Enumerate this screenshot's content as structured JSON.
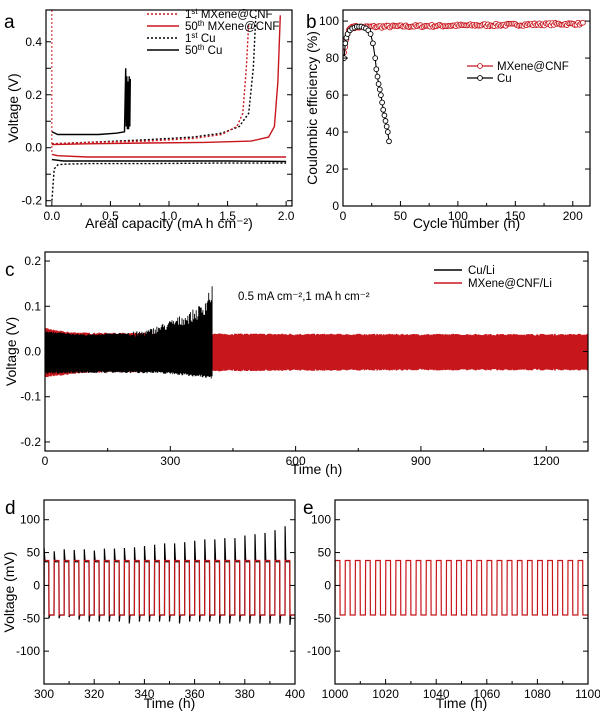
{
  "colors": {
    "red": "#c8161d",
    "black": "#000000"
  },
  "chart_data": [
    {
      "id": "a",
      "panel_label": "a",
      "type": "line",
      "xlabel": "Areal capacity (mA h cm⁻²)",
      "ylabel": "Voltage (V)",
      "xlim": [
        -0.05,
        2.05
      ],
      "ylim": [
        -0.22,
        0.52
      ],
      "xticks": [
        0.0,
        0.5,
        1.0,
        1.5,
        2.0
      ],
      "xtick_labels": [
        "0.0",
        "0.5",
        "1.0",
        "1.5",
        "2.0"
      ],
      "yticks": [
        -0.2,
        -0.1,
        0.0,
        0.1,
        0.2,
        0.3,
        0.4
      ],
      "ytick_labels": [
        "-0.2",
        "",
        "0.0",
        "",
        "0.2",
        "",
        "0.4"
      ],
      "legend_position": "top-right",
      "legend": [
        {
          "label_main": "1",
          "label_sup": "st",
          "label_rest": " MXene@CNF",
          "color": "#c8161d",
          "dash": "dotted"
        },
        {
          "label_main": "50",
          "label_sup": "th",
          "label_rest": " MXene@CNF",
          "color": "#c8161d",
          "dash": "solid"
        },
        {
          "label_main": "1",
          "label_sup": "st",
          "label_rest": " Cu",
          "color": "#000000",
          "dash": "dotted"
        },
        {
          "label_main": "50",
          "label_sup": "th",
          "label_rest": " Cu",
          "color": "#000000",
          "dash": "solid"
        }
      ],
      "series": [
        {
          "name": "50th Cu",
          "color": "#000000",
          "dash": "solid",
          "x": [
            0.0,
            0.05,
            0.2,
            0.4,
            0.55,
            0.62,
            0.63,
            0.635,
            0.64,
            0.645,
            0.65,
            0.655,
            0.66,
            0.665,
            0.67
          ],
          "y": [
            0.06,
            0.05,
            0.05,
            0.05,
            0.055,
            0.06,
            0.3,
            0.08,
            0.27,
            0.07,
            0.25,
            0.07,
            0.27,
            0.08,
            0.26
          ]
        },
        {
          "name": "50th Cu discharge",
          "color": "#000000",
          "dash": "solid",
          "x": [
            0.0,
            0.1,
            0.5,
            1.0,
            1.5,
            2.0
          ],
          "y": [
            -0.045,
            -0.05,
            -0.05,
            -0.05,
            -0.05,
            -0.052
          ]
        },
        {
          "name": "1st Cu",
          "color": "#000000",
          "dash": "dotted",
          "x": [
            0.0,
            0.3,
            0.8,
            1.2,
            1.45,
            1.6,
            1.68,
            1.72,
            1.74
          ],
          "y": [
            0.015,
            0.02,
            0.03,
            0.04,
            0.055,
            0.08,
            0.13,
            0.3,
            0.49
          ]
        },
        {
          "name": "1st Cu discharge",
          "color": "#000000",
          "dash": "dotted",
          "x": [
            0.0,
            0.02,
            0.05,
            0.1,
            0.3,
            0.8,
            1.4,
            2.0
          ],
          "y": [
            -0.2,
            -0.08,
            -0.065,
            -0.062,
            -0.06,
            -0.06,
            -0.058,
            -0.058
          ]
        },
        {
          "name": "1st MXene@CNF",
          "color": "#c8161d",
          "dash": "dotted",
          "x": [
            0.0,
            0.3,
            0.8,
            1.2,
            1.45,
            1.58,
            1.63,
            1.66,
            1.68
          ],
          "y": [
            0.015,
            0.02,
            0.025,
            0.035,
            0.05,
            0.08,
            0.13,
            0.3,
            0.47
          ]
        },
        {
          "name": "50th MXene@CNF",
          "color": "#c8161d",
          "dash": "solid",
          "x": [
            0.0,
            0.3,
            0.8,
            1.3,
            1.7,
            1.85,
            1.9,
            1.93,
            1.95
          ],
          "y": [
            0.012,
            0.015,
            0.018,
            0.02,
            0.025,
            0.04,
            0.08,
            0.25,
            0.5
          ]
        },
        {
          "name": "MXene@CNF discharge",
          "color": "#c8161d",
          "dash": "solid",
          "x": [
            0.0,
            0.05,
            0.3,
            0.8,
            1.4,
            2.0
          ],
          "y": [
            -0.025,
            -0.03,
            -0.035,
            -0.035,
            -0.035,
            -0.035
          ]
        }
      ]
    },
    {
      "id": "b",
      "panel_label": "b",
      "type": "line",
      "xlabel": "Cycle number (n)",
      "ylabel": "Coulombic efficiency (%)",
      "xlim": [
        0,
        215
      ],
      "ylim": [
        0,
        106
      ],
      "xticks": [
        0,
        50,
        100,
        150,
        200
      ],
      "xtick_labels": [
        "0",
        "50",
        "100",
        "150",
        "200"
      ],
      "yticks": [
        0,
        20,
        40,
        60,
        80,
        100
      ],
      "ytick_labels": [
        "0",
        "20",
        "40",
        "60",
        "80",
        "100"
      ],
      "legend_position": "center-right",
      "legend": [
        {
          "label": "MXene@CNF",
          "color": "#c8161d"
        },
        {
          "label": "Cu",
          "color": "#000000"
        }
      ],
      "series": [
        {
          "name": "MXene@CNF",
          "color": "#c8161d",
          "marker": "open-circle",
          "first_cycles": [
            [
              1,
              83
            ],
            [
              2,
              86
            ],
            [
              3,
              90
            ],
            [
              4,
              93
            ],
            [
              5,
              95
            ],
            [
              6,
              96
            ],
            [
              7,
              96.5
            ],
            [
              8,
              97
            ],
            [
              9,
              97
            ],
            [
              10,
              97.3
            ]
          ],
          "plateau": {
            "x_from": 10,
            "x_to": 210,
            "step": 1.4,
            "y_start": 96.8,
            "y_end": 98.6,
            "noise": 0.7
          }
        },
        {
          "name": "Cu",
          "color": "#000000",
          "marker": "open-circle",
          "points": [
            [
              1,
              80
            ],
            [
              2,
              88
            ],
            [
              3,
              91
            ],
            [
              4,
              93
            ],
            [
              6,
              95
            ],
            [
              8,
              96
            ],
            [
              10,
              96.5
            ],
            [
              12,
              97
            ],
            [
              14,
              97
            ],
            [
              16,
              97
            ],
            [
              18,
              96.5
            ],
            [
              20,
              96
            ],
            [
              22,
              95
            ],
            [
              24,
              93
            ],
            [
              26,
              88
            ],
            [
              28,
              80
            ],
            [
              29,
              74
            ],
            [
              30,
              70
            ],
            [
              31,
              66
            ],
            [
              32,
              63
            ],
            [
              33,
              60
            ],
            [
              34,
              56
            ],
            [
              35,
              52
            ],
            [
              36,
              49
            ],
            [
              37,
              46
            ],
            [
              38,
              43
            ],
            [
              39,
              40
            ],
            [
              40,
              35
            ]
          ]
        }
      ]
    },
    {
      "id": "c",
      "panel_label": "c",
      "type": "line",
      "xlabel": "Time (h)",
      "ylabel": "Voltage (V)",
      "xlim": [
        0,
        1300
      ],
      "ylim": [
        -0.22,
        0.22
      ],
      "xticks": [
        0,
        300,
        600,
        900,
        1200
      ],
      "xtick_labels": [
        "0",
        "300",
        "600",
        "900",
        "1200"
      ],
      "yticks": [
        -0.2,
        -0.1,
        0.0,
        0.1,
        0.2
      ],
      "ytick_labels": [
        "-0.2",
        "-0.1",
        "0.0",
        "0.1",
        "0.2"
      ],
      "annotation": "0.5 mA cm⁻²,1 mA h cm⁻²",
      "legend_position": "top-right",
      "legend": [
        {
          "label": "Cu/Li",
          "color": "#000000"
        },
        {
          "label": "MXene@CNF/Li",
          "color": "#c8161d"
        }
      ],
      "series": [
        {
          "name": "MXene@CNF/Li",
          "color": "#c8161d",
          "t_range": [
            0,
            1300
          ],
          "envelope": [
            [
              0,
              0.05,
              -0.055
            ],
            [
              50,
              0.042,
              -0.05
            ],
            [
              100,
              0.04,
              -0.045
            ],
            [
              400,
              0.038,
              -0.042
            ],
            [
              800,
              0.037,
              -0.04
            ],
            [
              1300,
              0.037,
              -0.04
            ]
          ]
        },
        {
          "name": "Cu/Li",
          "color": "#000000",
          "t_range": [
            0,
            400
          ],
          "envelope": [
            [
              0,
              0.045,
              -0.05
            ],
            [
              100,
              0.038,
              -0.048
            ],
            [
              200,
              0.042,
              -0.048
            ],
            [
              250,
              0.05,
              -0.048
            ],
            [
              300,
              0.07,
              -0.05
            ],
            [
              350,
              0.09,
              -0.055
            ],
            [
              380,
              0.11,
              -0.058
            ],
            [
              395,
              0.145,
              -0.06
            ],
            [
              400,
              0.145,
              -0.06
            ]
          ]
        }
      ]
    },
    {
      "id": "d",
      "panel_label": "d",
      "type": "line",
      "xlabel": "Time (h)",
      "ylabel": "Voltage (mV)",
      "xlim": [
        300,
        400
      ],
      "ylim": [
        -150,
        130
      ],
      "xticks": [
        300,
        320,
        340,
        360,
        380,
        400
      ],
      "xtick_labels": [
        "300",
        "320",
        "340",
        "360",
        "380",
        "400"
      ],
      "yticks": [
        -100,
        -50,
        0,
        50,
        100
      ],
      "ytick_labels": [
        "-100",
        "-50",
        "0",
        "50",
        "100"
      ],
      "series": [
        {
          "name": "MXene@CNF/Li",
          "color": "#c8161d",
          "period_h": 4,
          "start_h": 300,
          "plateau_high": 38,
          "plateau_low": -45
        },
        {
          "name": "Cu/Li",
          "color": "#000000",
          "period_h": 4,
          "start_h": 300,
          "plateau_high": 36,
          "plateau_low": -45,
          "spike_peaks": [
            57,
            52,
            55,
            54,
            55,
            53,
            56,
            56,
            57,
            58,
            60,
            62,
            64,
            64,
            66,
            68,
            70,
            70,
            72,
            72,
            76,
            78,
            80,
            84,
            90,
            96,
            105,
            113,
            124
          ],
          "neg_spikes": [
            -50,
            -50,
            -48,
            -52,
            -55,
            -55,
            -55,
            -55,
            -58,
            -55,
            -55,
            -55,
            -55,
            -58,
            -55,
            -55,
            -55,
            -58,
            -58,
            -55,
            -58,
            -58,
            -58,
            -58,
            -60,
            -60,
            -62,
            -62,
            -65
          ]
        }
      ]
    },
    {
      "id": "e",
      "panel_label": "e",
      "type": "line",
      "xlabel": "Time (h)",
      "ylabel": "",
      "xlim": [
        1000,
        1100
      ],
      "ylim": [
        -150,
        130
      ],
      "xticks": [
        1000,
        1020,
        1040,
        1060,
        1080,
        1100
      ],
      "xtick_labels": [
        "1000",
        "1020",
        "1040",
        "1060",
        "1080",
        "1100"
      ],
      "yticks": [
        -100,
        -50,
        0,
        50,
        100
      ],
      "ytick_labels": [
        "-100",
        "-50",
        "0",
        "50",
        "100"
      ],
      "series": [
        {
          "name": "MXene@CNF/Li",
          "color": "#c8161d",
          "period_h": 4,
          "start_h": 1000,
          "plateau_high": 38,
          "plateau_low": -45
        }
      ]
    }
  ]
}
